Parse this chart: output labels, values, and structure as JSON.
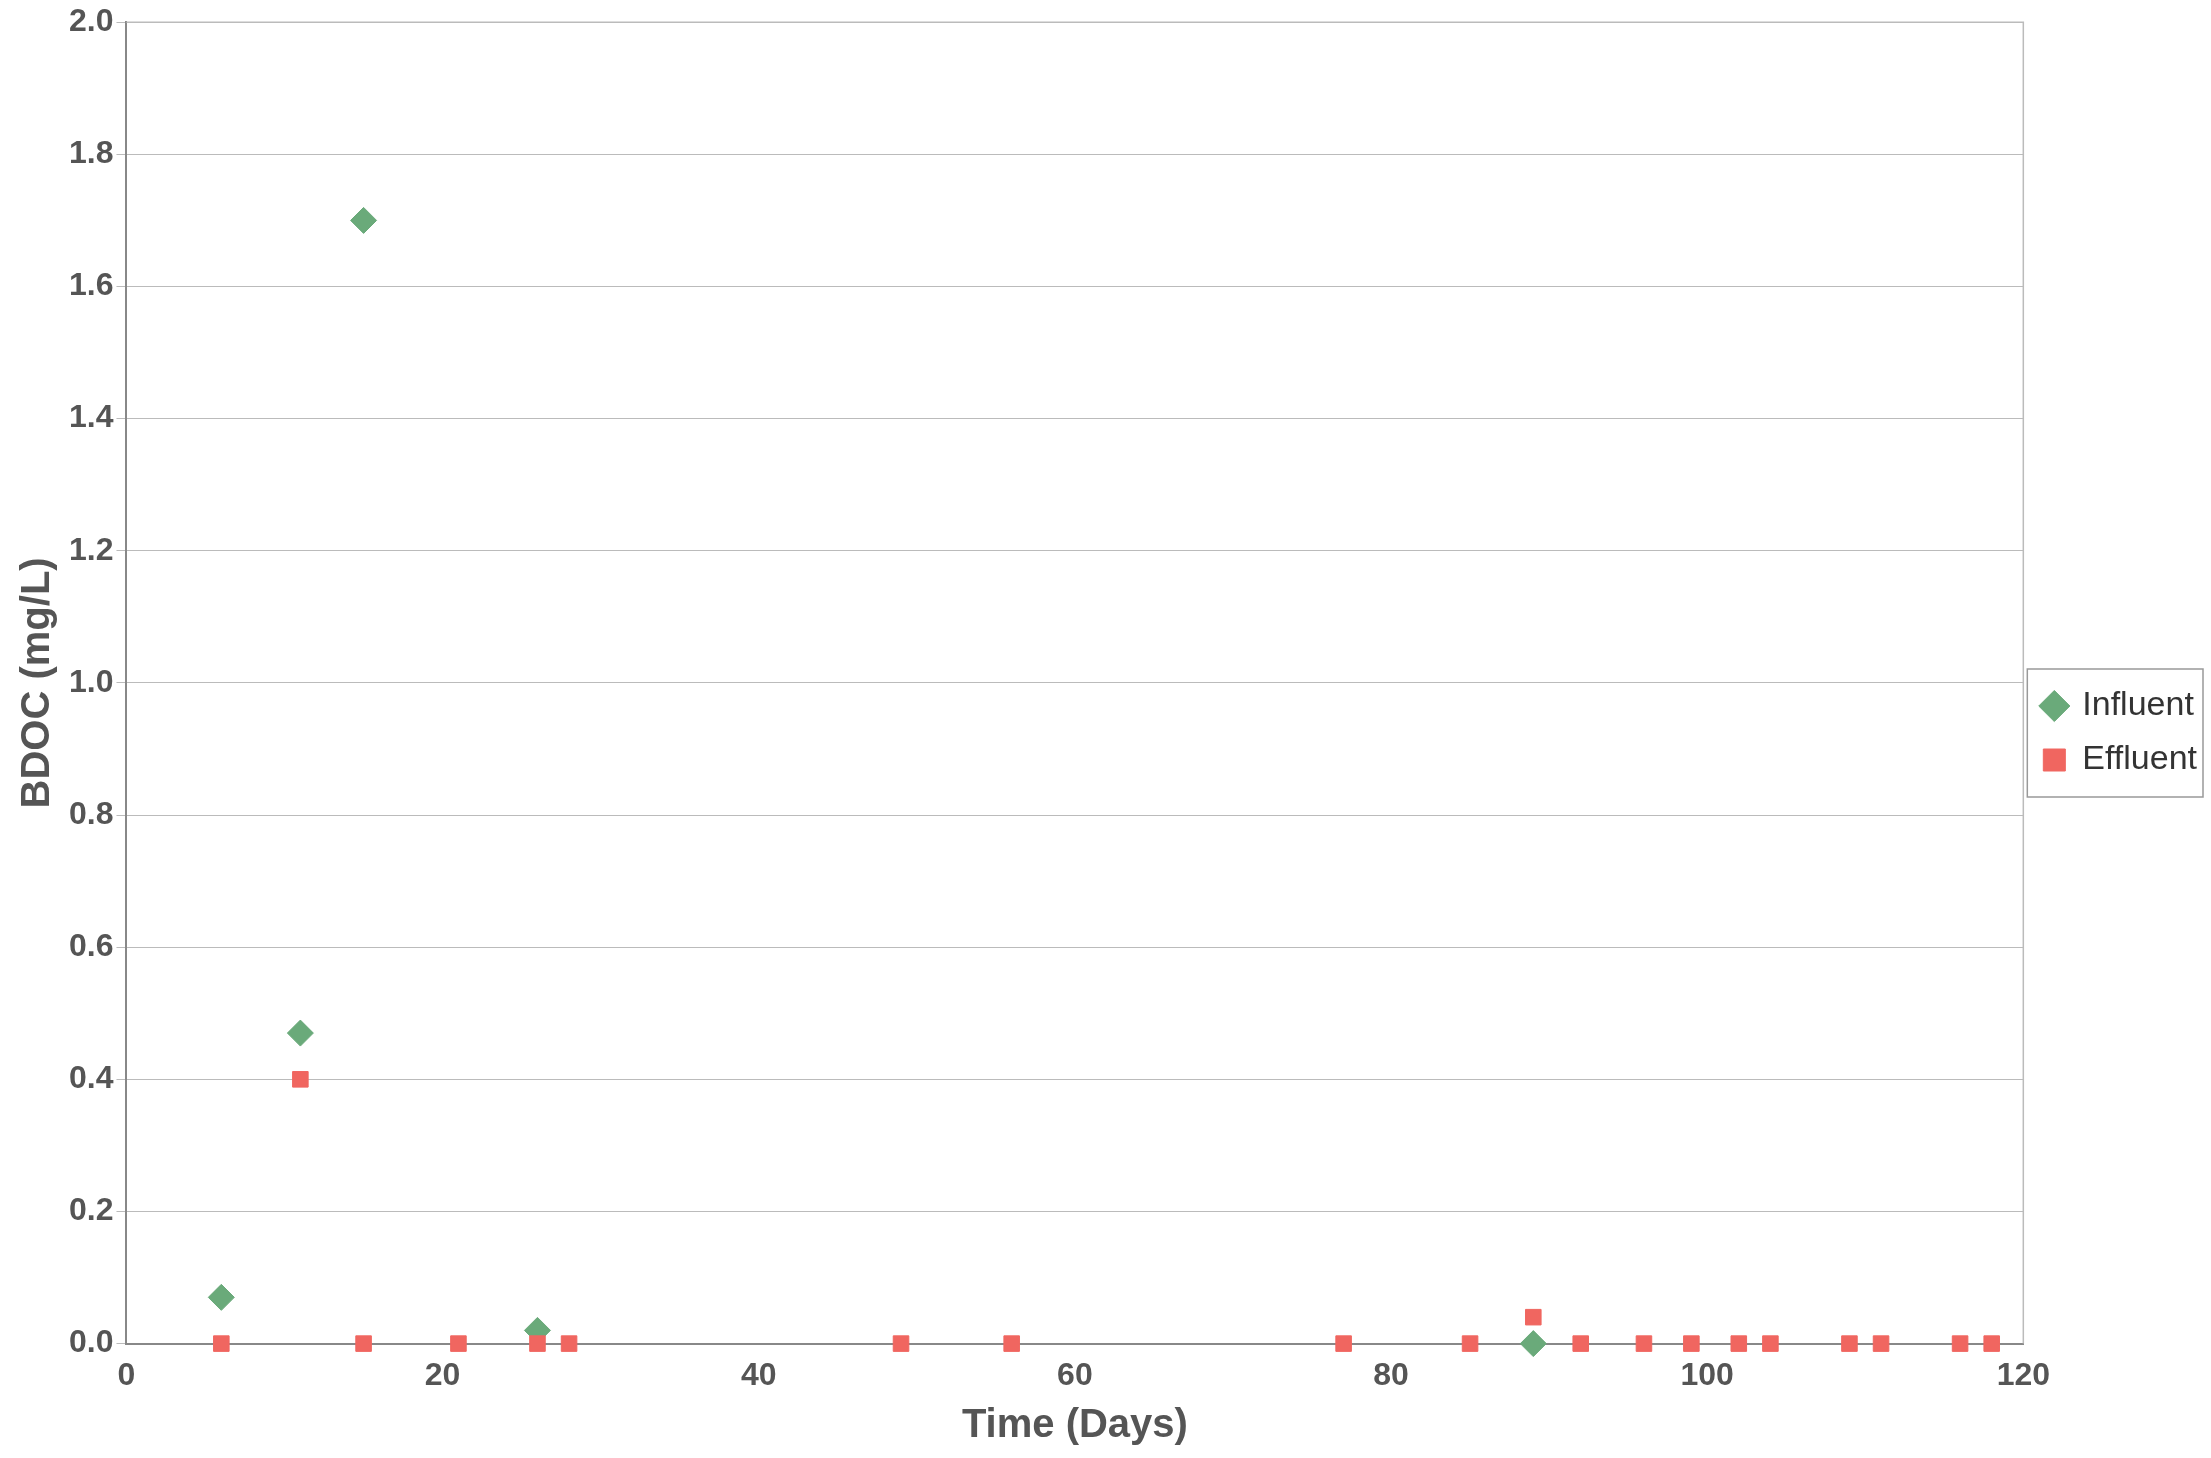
{
  "chart_data": {
    "type": "scatter",
    "xlabel": "Time (Days)",
    "ylabel": "BDOC (mg/L)",
    "xlim": [
      0,
      120
    ],
    "xticks": [
      0,
      20,
      40,
      60,
      80,
      100,
      120
    ],
    "ylim": [
      0,
      2.0
    ],
    "yticks": [
      {
        "value": 0,
        "label": "0.0"
      },
      {
        "value": 0.2,
        "label": "0.2"
      },
      {
        "value": 0.4,
        "label": "0.4"
      },
      {
        "value": 0.6,
        "label": "0.6"
      },
      {
        "value": 0.8,
        "label": "0.8"
      },
      {
        "value": 1.0,
        "label": "1.0"
      },
      {
        "value": 1.2,
        "label": "1.2"
      },
      {
        "value": 1.4,
        "label": "1.4"
      },
      {
        "value": 1.6,
        "label": "1.6"
      },
      {
        "value": 1.8,
        "label": "1.8"
      },
      {
        "value": 2.0,
        "label": "2.0"
      }
    ],
    "grid": "y",
    "legend": "right",
    "series": [
      {
        "name": "Influent",
        "color": "#6aaa7a",
        "marker": "diamond",
        "x": [
          6,
          11,
          15,
          26,
          28,
          89
        ],
        "values": [
          0.07,
          0.47,
          1.7,
          0.02,
          null,
          0.0
        ]
      },
      {
        "name": "Effluent",
        "color": "#f06660",
        "marker": "square",
        "x": [
          6,
          11,
          15,
          21,
          26,
          28,
          49,
          56,
          77,
          85,
          89,
          92,
          96,
          99,
          102,
          104,
          109,
          111,
          116,
          118
        ],
        "values": [
          0,
          0.4,
          0,
          0,
          0,
          0,
          0,
          0,
          0,
          0,
          0.04,
          0,
          0,
          0,
          0,
          0,
          0,
          0,
          0,
          0
        ]
      }
    ]
  }
}
